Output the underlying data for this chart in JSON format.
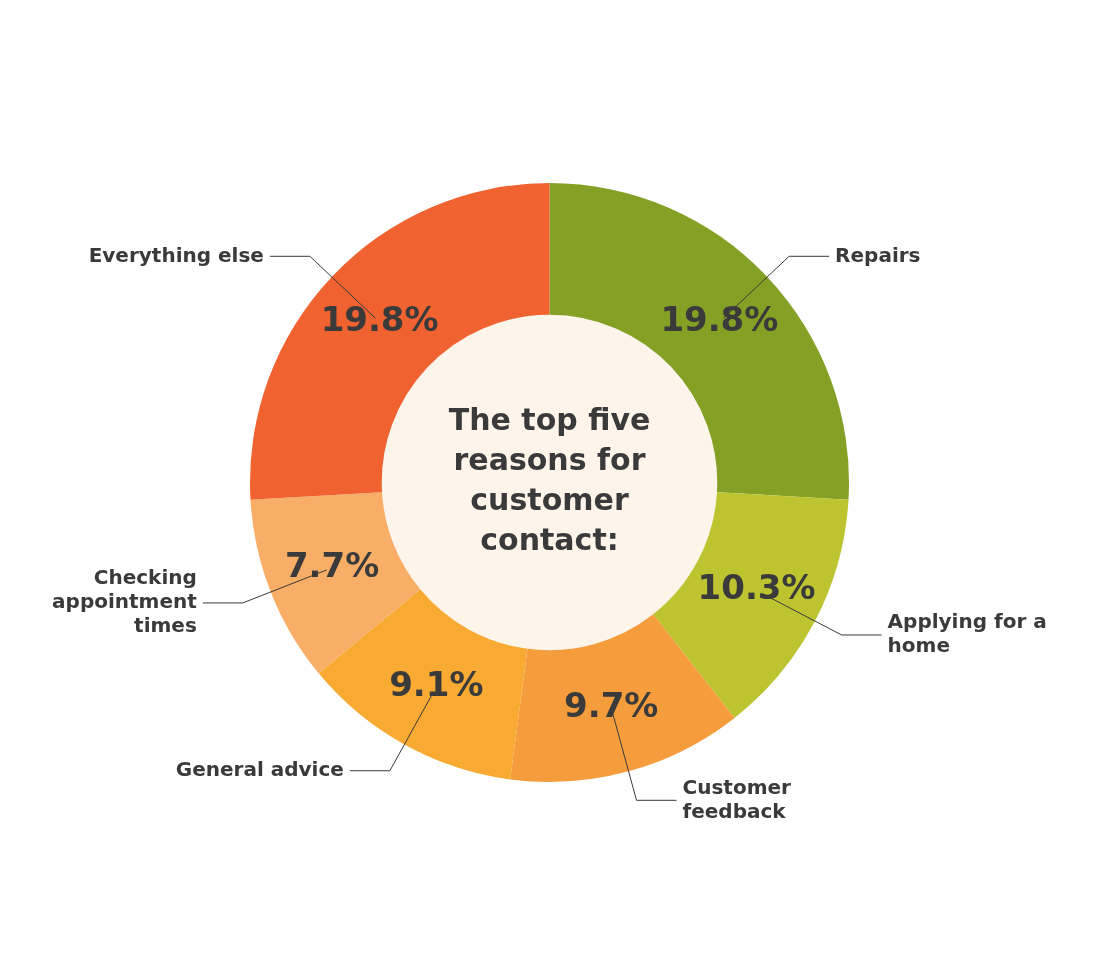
{
  "chart_data": {
    "type": "donut",
    "title": "The top five reasons for customer contact:",
    "categories": [
      "Repairs",
      "Applying for a home",
      "Customer feedback",
      "General advice",
      "Checking appointment times",
      "Everything else"
    ],
    "values": [
      19.8,
      10.3,
      9.7,
      9.1,
      7.7,
      19.8
    ],
    "value_labels": [
      "19.8%",
      "10.3%",
      "9.7%",
      "9.1%",
      "7.7%",
      "19.8%"
    ],
    "colors": [
      "#84a025",
      "#bdc430",
      "#f59c3c",
      "#f8aa32",
      "#f8ae66",
      "#f06331"
    ],
    "legend": false
  }
}
